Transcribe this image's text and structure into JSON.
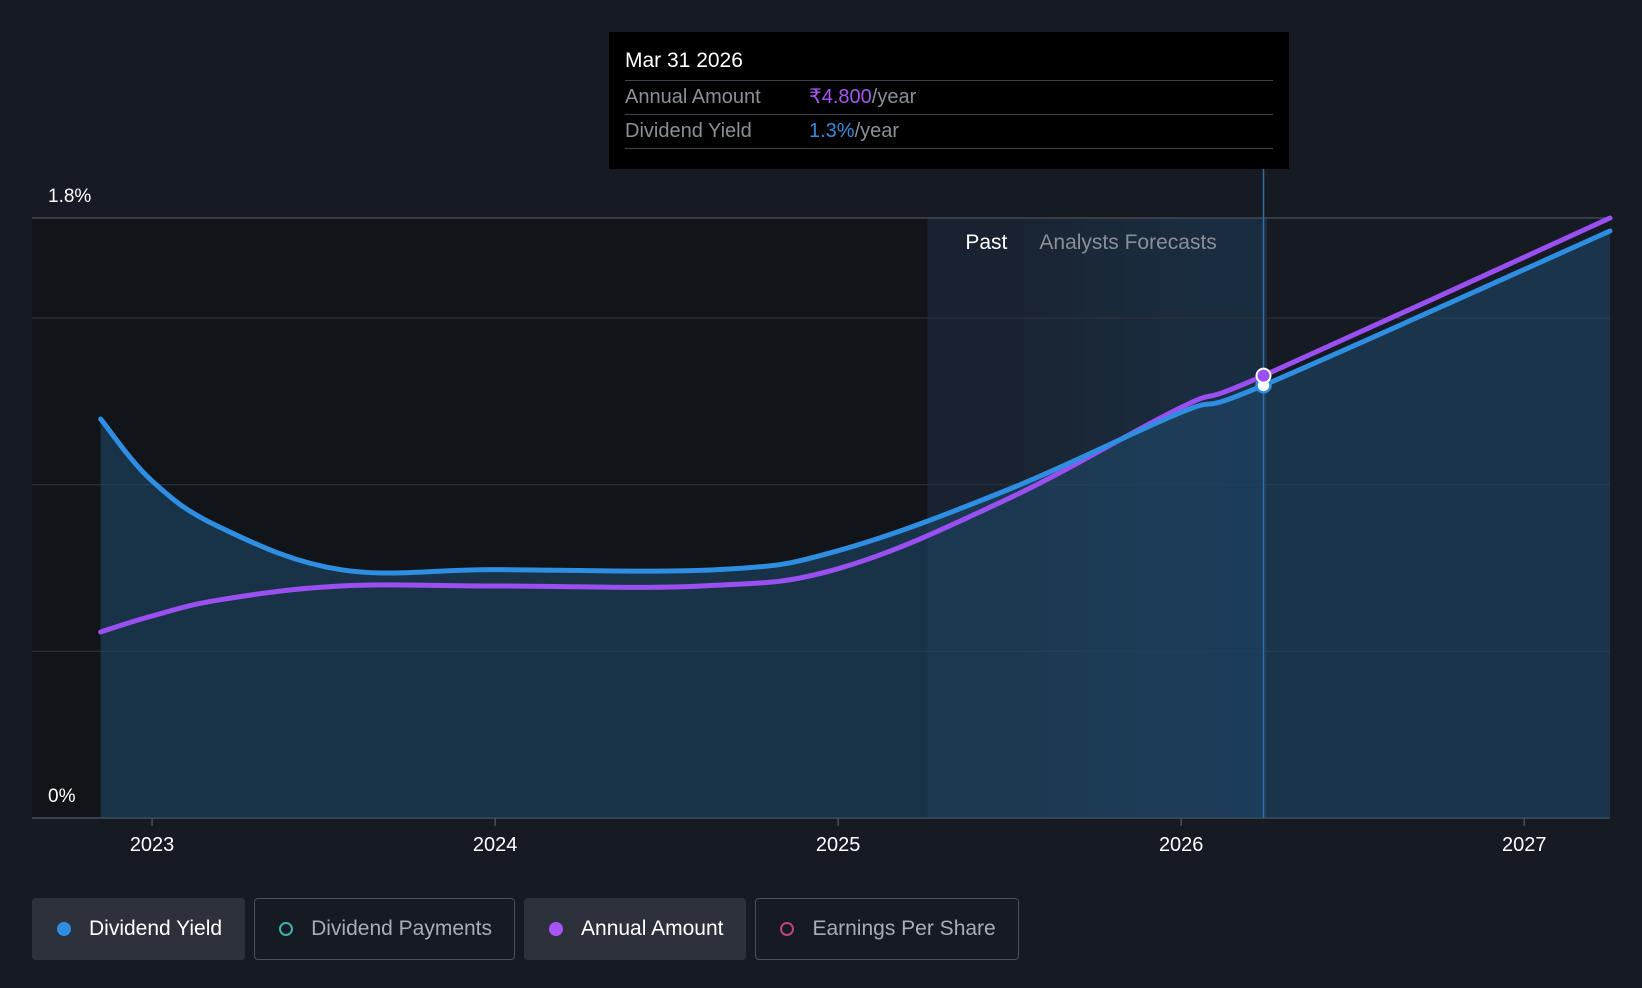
{
  "chart_data": {
    "type": "line",
    "y_axis": {
      "ticks": [
        "1.8%",
        "0%"
      ],
      "ylim": [
        0,
        1.8
      ]
    },
    "x_axis": {
      "ticks": [
        2023,
        2024,
        2025,
        2026,
        2027
      ],
      "xlim": [
        2022.65,
        2027.25
      ]
    },
    "regions": {
      "past_label": "Past",
      "forecast_label": "Analysts Forecasts",
      "past_end": 2025.54,
      "highlight_start": 2025.26,
      "highlight_end": 2026.25
    },
    "series": [
      {
        "name": "Dividend Yield",
        "color": "#2d8ee2",
        "area": true,
        "points": [
          [
            2022.85,
            1.197
          ],
          [
            2023.0,
            1.011
          ],
          [
            2023.2,
            0.871
          ],
          [
            2023.55,
            0.745
          ],
          [
            2024.0,
            0.745
          ],
          [
            2024.65,
            0.745
          ],
          [
            2025.0,
            0.802
          ],
          [
            2025.5,
            0.987
          ],
          [
            2026.0,
            1.217
          ],
          [
            2026.24,
            1.298
          ],
          [
            2027.25,
            1.761
          ]
        ]
      },
      {
        "name": "Annual Amount",
        "color": "#9a4ff0",
        "area": false,
        "points": [
          [
            2022.85,
            0.558
          ],
          [
            2023.0,
            0.606
          ],
          [
            2023.2,
            0.655
          ],
          [
            2023.55,
            0.696
          ],
          [
            2024.0,
            0.696
          ],
          [
            2024.6,
            0.696
          ],
          [
            2025.0,
            0.748
          ],
          [
            2025.5,
            0.96
          ],
          [
            2026.0,
            1.232
          ],
          [
            2026.24,
            1.327
          ],
          [
            2027.25,
            1.8
          ]
        ]
      }
    ],
    "tooltip": {
      "date": "Mar 31 2026",
      "x": 2026.24,
      "rows": [
        {
          "label": "Annual Amount",
          "value": "₹4.800",
          "suffix": "/year",
          "color": "#a855f7"
        },
        {
          "label": "Dividend Yield",
          "value": "1.3%",
          "suffix": "/year",
          "color": "#2d8ee2"
        }
      ]
    },
    "legend": [
      {
        "label": "Dividend Yield",
        "color": "#2d8ee2",
        "active": true
      },
      {
        "label": "Dividend Payments",
        "color": "#3bb5a8",
        "active": false
      },
      {
        "label": "Annual Amount",
        "color": "#a855f7",
        "active": true
      },
      {
        "label": "Earnings Per Share",
        "color": "#c4427a",
        "active": false
      }
    ]
  }
}
